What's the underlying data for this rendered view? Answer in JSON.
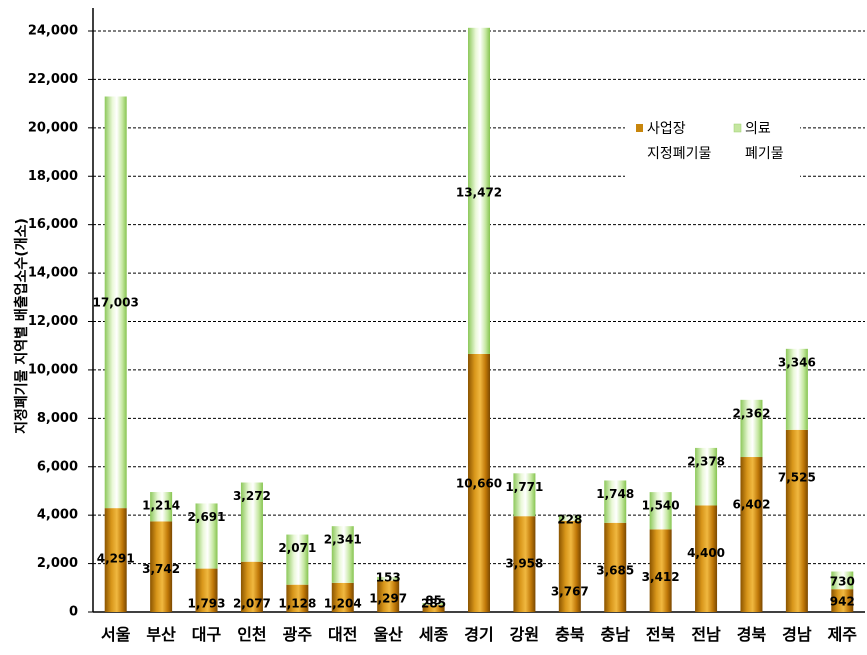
{
  "chart_data": {
    "type": "bar",
    "stacked": true,
    "ylabel": "지정폐기물 지역별 배출업소수(개소)",
    "ylim": [
      0,
      24000
    ],
    "ytick_step": 2000,
    "grid": "horizontal-dashed",
    "legend_position": "top-right",
    "categories": [
      "서울",
      "부산",
      "대구",
      "인천",
      "광주",
      "대전",
      "울산",
      "세종",
      "경기",
      "강원",
      "충북",
      "충남",
      "전북",
      "전남",
      "경북",
      "경남",
      "제주"
    ],
    "series": [
      {
        "name": "사업장 지정폐기물",
        "legend_lines": [
          "사업장",
          "지정폐기물"
        ],
        "color": "#c8860c",
        "values": [
          4291,
          3742,
          1793,
          2077,
          1128,
          1204,
          1297,
          285,
          10660,
          3958,
          3767,
          3685,
          3412,
          4400,
          6402,
          7525,
          942
        ]
      },
      {
        "name": "의료 폐기물",
        "legend_lines": [
          "의료",
          "폐기물"
        ],
        "color": "#c5e6a0",
        "values": [
          17003,
          1214,
          2691,
          3272,
          2071,
          2341,
          153,
          85,
          13472,
          1771,
          228,
          1748,
          1540,
          2378,
          2362,
          3346,
          730
        ]
      }
    ],
    "label_text": {
      "세종": [
        "285",
        "85"
      ]
    }
  }
}
